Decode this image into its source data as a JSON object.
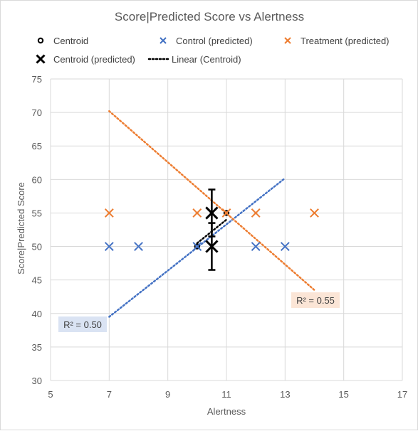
{
  "chart_data": {
    "type": "scatter",
    "title": "Score|Predicted Score vs Alertness",
    "xlabel": "Alertness",
    "ylabel": "Score|Predicted  Score",
    "xlim": [
      5,
      17
    ],
    "ylim": [
      30,
      75
    ],
    "xticks": [
      5,
      7,
      9,
      11,
      13,
      15,
      17
    ],
    "yticks": [
      30,
      35,
      40,
      45,
      50,
      55,
      60,
      65,
      70,
      75
    ],
    "grid": true,
    "legend": {
      "placement": "top",
      "entries": [
        {
          "label": "Centroid",
          "marker": "circle",
          "color": "#000000"
        },
        {
          "label": "Control (predicted)",
          "marker": "x",
          "color": "#4472C4"
        },
        {
          "label": "Treatment (predicted)",
          "marker": "x",
          "color": "#ED7D31"
        },
        {
          "label": "Centroid (predicted)",
          "marker": "x",
          "color": "#000000"
        },
        {
          "label": "Linear (Centroid)",
          "marker": "dotted-line",
          "color": "#000000"
        }
      ]
    },
    "series": [
      {
        "name": "Centroid",
        "marker": "circle",
        "color": "#000000",
        "points": [
          {
            "x": 10,
            "y": 50
          },
          {
            "x": 11,
            "y": 55
          }
        ]
      },
      {
        "name": "Control (predicted)",
        "marker": "x",
        "color": "#4472C4",
        "points": [
          {
            "x": 7,
            "y": 50
          },
          {
            "x": 8,
            "y": 50
          },
          {
            "x": 10,
            "y": 50
          },
          {
            "x": 12,
            "y": 50
          },
          {
            "x": 13,
            "y": 50
          }
        ]
      },
      {
        "name": "Treatment (predicted)",
        "marker": "x",
        "color": "#ED7D31",
        "points": [
          {
            "x": 7,
            "y": 55
          },
          {
            "x": 10,
            "y": 55
          },
          {
            "x": 11,
            "y": 55
          },
          {
            "x": 12,
            "y": 55
          },
          {
            "x": 14,
            "y": 55
          }
        ]
      },
      {
        "name": "Centroid (predicted)",
        "marker": "x",
        "color": "#000000",
        "points": [
          {
            "x": 10.5,
            "y": 55,
            "error": [
              51.5,
              58.5
            ]
          },
          {
            "x": 10.5,
            "y": 50,
            "error": [
              46.5,
              53.5
            ]
          }
        ]
      }
    ],
    "trendlines": [
      {
        "name": "Linear (Control)",
        "color": "#4472C4",
        "x": [
          7,
          13
        ],
        "y": [
          39.5,
          60.2
        ],
        "r2": "R² = 0.50",
        "r2_bg": "#DAE3F3"
      },
      {
        "name": "Linear (Treatment)",
        "color": "#ED7D31",
        "x": [
          7,
          14
        ],
        "y": [
          70.2,
          43.5
        ],
        "r2": "R² = 0.55",
        "r2_bg": "#FBE5D6"
      },
      {
        "name": "Linear (Centroid)",
        "color": "#000000",
        "x": [
          10,
          11
        ],
        "y": [
          50.5,
          54
        ]
      }
    ]
  }
}
